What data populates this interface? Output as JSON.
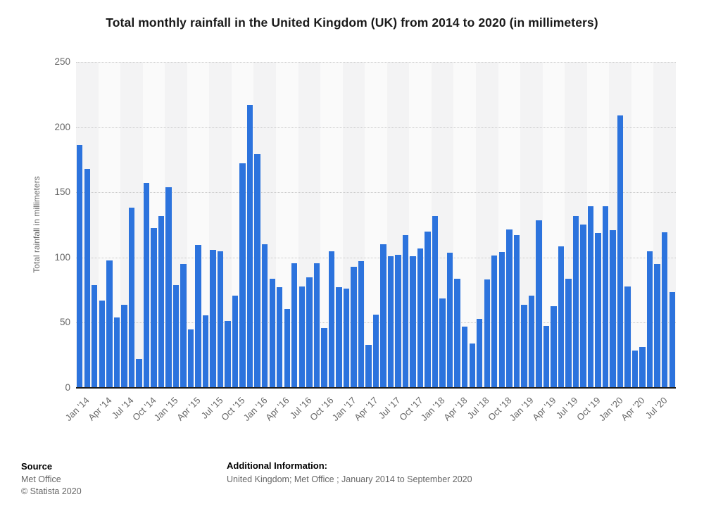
{
  "header": {
    "title": "Total monthly rainfall in the United Kingdom (UK) from 2014 to 2020 (in millimeters)"
  },
  "chart_data": {
    "type": "bar",
    "title": "Total monthly rainfall in the United Kingdom (UK) from 2014 to 2020 (in millimeters)",
    "xlabel": "",
    "ylabel": "Total rainfall in millimeters",
    "ylim": [
      0,
      250
    ],
    "yticks": [
      0,
      50,
      100,
      150,
      200,
      250
    ],
    "grid": "horizontal-dotted",
    "legend": "none",
    "unit": "mm",
    "categories": [
      "Jan '14",
      "Feb '14",
      "Mar '14",
      "Apr '14",
      "May '14",
      "Jun '14",
      "Jul '14",
      "Aug '14",
      "Sep '14",
      "Oct '14",
      "Nov '14",
      "Dec '14",
      "Jan '15",
      "Feb '15",
      "Mar '15",
      "Apr '15",
      "May '15",
      "Jun '15",
      "Jul '15",
      "Aug '15",
      "Sep '15",
      "Oct '15",
      "Nov '15",
      "Dec '15",
      "Jan '16",
      "Feb '16",
      "Mar '16",
      "Apr '16",
      "May '16",
      "Jun '16",
      "Jul '16",
      "Aug '16",
      "Sep '16",
      "Oct '16",
      "Nov '16",
      "Dec '16",
      "Jan '17",
      "Feb '17",
      "Mar '17",
      "Apr '17",
      "May '17",
      "Jun '17",
      "Jul '17",
      "Aug '17",
      "Sep '17",
      "Oct '17",
      "Nov '17",
      "Dec '17",
      "Jan '18",
      "Feb '18",
      "Mar '18",
      "Apr '18",
      "May '18",
      "Jun '18",
      "Jul '18",
      "Aug '18",
      "Sep '18",
      "Oct '18",
      "Nov '18",
      "Dec '18",
      "Jan '19",
      "Feb '19",
      "Mar '19",
      "Apr '19",
      "May '19",
      "Jun '19",
      "Jul '19",
      "Aug '19",
      "Sep '19",
      "Oct '19",
      "Nov '19",
      "Dec '19",
      "Jan '20",
      "Feb '20",
      "Mar '20",
      "Apr '20",
      "May '20",
      "Jun '20",
      "Jul '20",
      "Aug '20",
      "Sep '20"
    ],
    "values": [
      186.5,
      168,
      79,
      67,
      98,
      54,
      63.5,
      138,
      22,
      157,
      122.5,
      131.5,
      154,
      79,
      95,
      45,
      109.5,
      55.5,
      106,
      104.5,
      51.5,
      71,
      172,
      217,
      179,
      110,
      83.5,
      77,
      60.5,
      95.5,
      77.5,
      85,
      95.5,
      46,
      105,
      77,
      76,
      93,
      97,
      33,
      56,
      110,
      101,
      102,
      117,
      101,
      107,
      120,
      132,
      68.5,
      103.5,
      83.5,
      47,
      34,
      53,
      83,
      101.5,
      104,
      121.5,
      117,
      63.5,
      70.5,
      128.5,
      47.5,
      62.5,
      108.5,
      83.5,
      132,
      125.5,
      139.5,
      119,
      139.5,
      121,
      209,
      77.5,
      28.5,
      31.5,
      105,
      95,
      119.5,
      73.5
    ],
    "xtick_labels": [
      "Jan '14",
      "Apr '14",
      "Jul '14",
      "Oct '14",
      "Jan '15",
      "Apr '15",
      "Jul '15",
      "Oct '15",
      "Jan '16",
      "Apr '16",
      "Jul '16",
      "Oct '16",
      "Jan '17",
      "Apr '17",
      "Jul '17",
      "Oct '17",
      "Jan '18",
      "Apr '18",
      "Jul '18",
      "Oct '18",
      "Jan '19",
      "Apr '19",
      "Jul '19",
      "Oct '19",
      "Jan '20",
      "Apr '20",
      "Jul '20"
    ],
    "xtick_every": 3,
    "bar_color": "#2c73dd",
    "band_color_a": "#f3f3f4",
    "band_color_b": "#fafafa"
  },
  "footer": {
    "source_label": "Source",
    "source_name": "Met Office",
    "copyright": "© Statista 2020",
    "additional_label": "Additional Information:",
    "additional_text": "United Kingdom; Met Office ; January 2014 to September 2020"
  }
}
